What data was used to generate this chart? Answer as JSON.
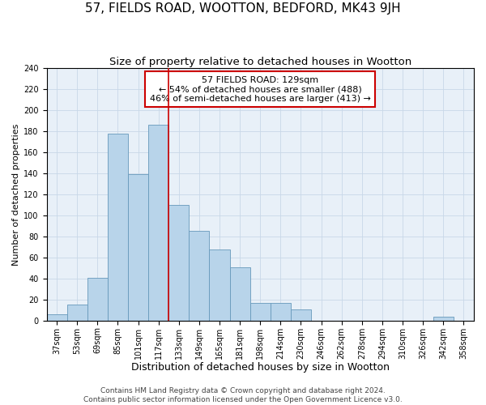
{
  "title": "57, FIELDS ROAD, WOOTTON, BEDFORD, MK43 9JH",
  "subtitle": "Size of property relative to detached houses in Wootton",
  "xlabel": "Distribution of detached houses by size in Wootton",
  "ylabel": "Number of detached properties",
  "bar_labels": [
    "37sqm",
    "53sqm",
    "69sqm",
    "85sqm",
    "101sqm",
    "117sqm",
    "133sqm",
    "149sqm",
    "165sqm",
    "181sqm",
    "198sqm",
    "214sqm",
    "230sqm",
    "246sqm",
    "262sqm",
    "278sqm",
    "294sqm",
    "310sqm",
    "326sqm",
    "342sqm",
    "358sqm"
  ],
  "bar_values": [
    6,
    15,
    41,
    178,
    139,
    186,
    110,
    85,
    68,
    51,
    17,
    17,
    11,
    0,
    0,
    0,
    0,
    0,
    0,
    4,
    0
  ],
  "bar_color": "#b8d4ea",
  "bar_edge_color": "#6699bb",
  "vline_color": "#cc0000",
  "annotation_text": "57 FIELDS ROAD: 129sqm\n← 54% of detached houses are smaller (488)\n46% of semi-detached houses are larger (413) →",
  "annotation_box_color": "#ffffff",
  "annotation_box_edge": "#cc0000",
  "ylim": [
    0,
    240
  ],
  "yticks": [
    0,
    20,
    40,
    60,
    80,
    100,
    120,
    140,
    160,
    180,
    200,
    220,
    240
  ],
  "footer_line1": "Contains HM Land Registry data © Crown copyright and database right 2024.",
  "footer_line2": "Contains public sector information licensed under the Open Government Licence v3.0.",
  "bg_color": "#e8f0f8",
  "grid_color": "#c8d8e8",
  "title_fontsize": 11,
  "subtitle_fontsize": 9.5,
  "xlabel_fontsize": 9,
  "ylabel_fontsize": 8,
  "tick_fontsize": 7,
  "annotation_fontsize": 8,
  "footer_fontsize": 6.5
}
